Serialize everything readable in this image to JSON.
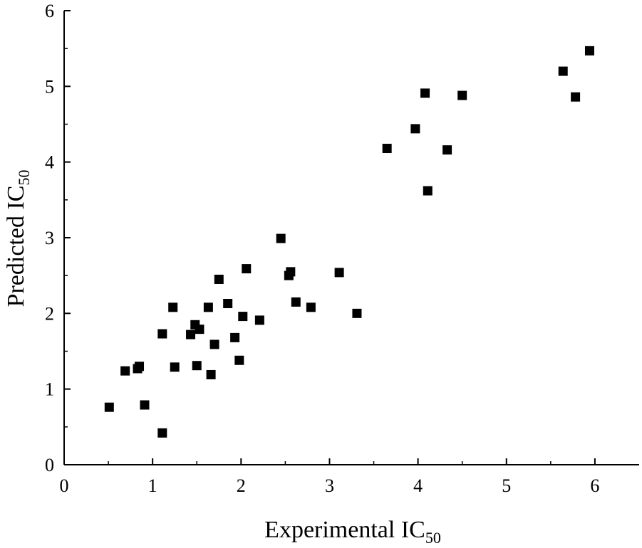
{
  "chart_data": {
    "type": "scatter",
    "title": "",
    "xlabel": "Experimental IC",
    "xlabel_sub": "50",
    "ylabel": "Predicted IC",
    "ylabel_sub": "50",
    "xlim": [
      0,
      6.5
    ],
    "ylim": [
      0,
      6
    ],
    "x_ticks": [
      0,
      1,
      2,
      3,
      4,
      5,
      6
    ],
    "y_ticks": [
      0,
      1,
      2,
      3,
      4,
      5,
      6
    ],
    "grid": false,
    "legend": "none",
    "marker": "square",
    "marker_color": "#000000",
    "points": [
      {
        "x": 0.51,
        "y": 0.76
      },
      {
        "x": 0.69,
        "y": 1.24
      },
      {
        "x": 0.83,
        "y": 1.27
      },
      {
        "x": 0.85,
        "y": 1.3
      },
      {
        "x": 0.91,
        "y": 0.79
      },
      {
        "x": 1.11,
        "y": 1.73
      },
      {
        "x": 1.11,
        "y": 0.42
      },
      {
        "x": 1.23,
        "y": 2.08
      },
      {
        "x": 1.25,
        "y": 1.29
      },
      {
        "x": 1.43,
        "y": 1.72
      },
      {
        "x": 1.48,
        "y": 1.85
      },
      {
        "x": 1.5,
        "y": 1.31
      },
      {
        "x": 1.53,
        "y": 1.79
      },
      {
        "x": 1.63,
        "y": 2.08
      },
      {
        "x": 1.66,
        "y": 1.19
      },
      {
        "x": 1.7,
        "y": 1.59
      },
      {
        "x": 1.75,
        "y": 2.45
      },
      {
        "x": 1.85,
        "y": 2.13
      },
      {
        "x": 1.93,
        "y": 1.68
      },
      {
        "x": 1.98,
        "y": 1.38
      },
      {
        "x": 2.02,
        "y": 1.96
      },
      {
        "x": 2.06,
        "y": 2.59
      },
      {
        "x": 2.21,
        "y": 1.91
      },
      {
        "x": 2.45,
        "y": 2.99
      },
      {
        "x": 2.54,
        "y": 2.5
      },
      {
        "x": 2.56,
        "y": 2.55
      },
      {
        "x": 2.62,
        "y": 2.15
      },
      {
        "x": 2.79,
        "y": 2.08
      },
      {
        "x": 3.11,
        "y": 2.54
      },
      {
        "x": 3.31,
        "y": 2.0
      },
      {
        "x": 3.65,
        "y": 4.18
      },
      {
        "x": 3.97,
        "y": 4.44
      },
      {
        "x": 4.08,
        "y": 4.91
      },
      {
        "x": 4.11,
        "y": 3.62
      },
      {
        "x": 4.33,
        "y": 4.16
      },
      {
        "x": 4.5,
        "y": 4.88
      },
      {
        "x": 5.64,
        "y": 5.2
      },
      {
        "x": 5.78,
        "y": 4.86
      },
      {
        "x": 5.94,
        "y": 5.47
      }
    ]
  }
}
